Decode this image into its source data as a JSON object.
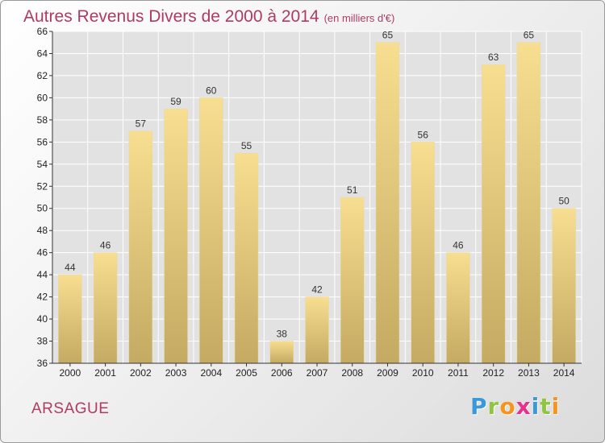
{
  "title": {
    "main": "Autres Revenus Divers de 2000 à 2014",
    "unit": "(en milliers d'€)"
  },
  "commune": "ARSAGUE",
  "logo": {
    "text": "Proxiti",
    "letters": [
      {
        "ch": "P",
        "color": "#3a9ad9"
      },
      {
        "ch": "r",
        "color": "#8dc63f"
      },
      {
        "ch": "o",
        "color": "#f7941d"
      },
      {
        "ch": "x",
        "color": "#e8308c"
      },
      {
        "ch": "i",
        "color": "#3a9ad9"
      },
      {
        "ch": "t",
        "color": "#8dc63f"
      },
      {
        "ch": "i",
        "color": "#f7941d"
      }
    ]
  },
  "colors": {
    "title": "#b03a62",
    "bar_top": "#f7de90",
    "bar_bottom": "#c4aa62",
    "plot_bg": "#e2e2e2",
    "grid": "#ffffff",
    "axis": "#333333"
  },
  "chart_data": {
    "type": "bar",
    "title": "Autres Revenus Divers de 2000 à 2014",
    "subtitle": "(en milliers d'€)",
    "categories": [
      "2000",
      "2001",
      "2002",
      "2003",
      "2004",
      "2005",
      "2006",
      "2007",
      "2008",
      "2009",
      "2010",
      "2011",
      "2012",
      "2013",
      "2014"
    ],
    "values": [
      44,
      46,
      57,
      59,
      60,
      55,
      38,
      42,
      51,
      65,
      56,
      46,
      63,
      65,
      50
    ],
    "ylim": [
      36,
      66
    ],
    "yticks": [
      36,
      38,
      40,
      42,
      44,
      46,
      48,
      50,
      52,
      54,
      56,
      58,
      60,
      62,
      64,
      66
    ],
    "grid": true,
    "data_labels": true
  }
}
